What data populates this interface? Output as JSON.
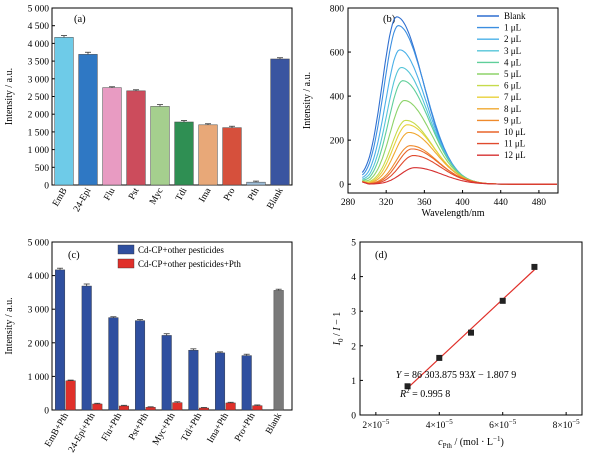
{
  "chart_data": [
    {
      "panel": "(a)",
      "type": "bar",
      "ylabel": "Intensity / a.u.",
      "ylim": [
        0,
        5000
      ],
      "yticks": [
        "0",
        "500",
        "1 000",
        "1 500",
        "2 000",
        "2 500",
        "3 000",
        "3 500",
        "4 000",
        "4 500",
        "5 000"
      ],
      "categories": [
        "EmB",
        "24-Epi",
        "Flu",
        "Pst",
        "Myc",
        "Tdi",
        "Ima",
        "Pro",
        "Pth",
        "Blank"
      ],
      "values": [
        4170,
        3690,
        2750,
        2660,
        2220,
        1780,
        1700,
        1620,
        80,
        3560
      ],
      "errors": [
        50,
        60,
        25,
        30,
        50,
        40,
        30,
        40,
        30,
        35
      ],
      "colors": [
        "#6ecbe8",
        "#2f78c4",
        "#e89bc2",
        "#cc4c5c",
        "#a5cf8e",
        "#2f8f53",
        "#e8a878",
        "#d6503c",
        "#9dbdd8",
        "#3a55a0"
      ]
    },
    {
      "panel": "(b)",
      "type": "line",
      "xlabel": "Wavelength/nm",
      "ylabel": "Intensity / a.u.",
      "xlim": [
        280,
        500
      ],
      "ylim": [
        -40,
        800
      ],
      "xticks": [
        "280",
        "320",
        "360",
        "400",
        "440",
        "480",
        "520"
      ],
      "yticks": [
        "0",
        "200",
        "400",
        "600",
        "800"
      ],
      "legend_position": "top-right",
      "series": [
        {
          "name": "Blank",
          "peak": 760,
          "color": "#2f6fd0"
        },
        {
          "name": "1 μL",
          "peak": 720,
          "color": "#3b8ee0"
        },
        {
          "name": "2 μL",
          "peak": 610,
          "color": "#4ab0e8"
        },
        {
          "name": "3 μL",
          "peak": 530,
          "color": "#55c5d8"
        },
        {
          "name": "4 μL",
          "peak": 470,
          "color": "#5fcf9a"
        },
        {
          "name": "5 μL",
          "peak": 380,
          "color": "#8dd36a"
        },
        {
          "name": "6 μL",
          "peak": 290,
          "color": "#c6db4c"
        },
        {
          "name": "7 μL",
          "peak": 270,
          "color": "#e8d13a"
        },
        {
          "name": "8 μL",
          "peak": 235,
          "color": "#f0a830"
        },
        {
          "name": "9 μL",
          "peak": 175,
          "color": "#ef8a2c"
        },
        {
          "name": "10 μL",
          "peak": 160,
          "color": "#e8652a"
        },
        {
          "name": "11 μL",
          "peak": 130,
          "color": "#e04a2e"
        },
        {
          "name": "12 μL",
          "peak": 75,
          "color": "#d63030"
        }
      ]
    },
    {
      "panel": "(c)",
      "type": "bar",
      "ylabel": "Intensity / a.u.",
      "ylim": [
        0,
        5000
      ],
      "yticks": [
        "0",
        "1 000",
        "2 000",
        "3 000",
        "4 000",
        "5 000"
      ],
      "categories": [
        "EmB+Pth",
        "24-Epi+Pth",
        "Flu+Pth",
        "Pst+Pth",
        "Myc+Pth",
        "Tdi+Pth",
        "Ima+Pth",
        "Pro+Pth",
        "Blank"
      ],
      "series": [
        {
          "name": "Cd-CP+other pesticides",
          "color": "#2f4f9f",
          "values": [
            4170,
            3690,
            2750,
            2660,
            2220,
            1780,
            1700,
            1620,
            3560
          ],
          "errors": [
            50,
            60,
            25,
            30,
            50,
            40,
            30,
            40,
            35
          ]
        },
        {
          "name": "Cd-CP+other pesticides+Pth",
          "color": "#e0302a",
          "values": [
            870,
            180,
            120,
            80,
            220,
            60,
            210,
            130,
            null
          ],
          "errors": [
            20,
            20,
            20,
            15,
            25,
            15,
            20,
            20,
            null
          ]
        }
      ],
      "blank_color": "#7a7a7a",
      "legend_position": "top"
    },
    {
      "panel": "(d)",
      "type": "scatter",
      "xlabel_parts": {
        "sym": "c",
        "sub": "Pth",
        "unit": " / (mol · L",
        "exp": "−1",
        "close": ")"
      },
      "ylabel_parts": {
        "i0": "I",
        "i0_sub": "0",
        "mid": " / ",
        "i": "I",
        "tail": " − 1"
      },
      "xlim": [
        1.5e-05,
        8.5e-05
      ],
      "ylim": [
        0,
        5
      ],
      "xticks": [
        {
          "mant": "2×10",
          "exp": "−5",
          "v": 2e-05
        },
        {
          "mant": "4×10",
          "exp": "−5",
          "v": 4e-05
        },
        {
          "mant": "6×10",
          "exp": "−5",
          "v": 6e-05
        },
        {
          "mant": "8×10",
          "exp": "−5",
          "v": 8e-05
        }
      ],
      "yticks": [
        "0",
        "1",
        "2",
        "3",
        "4",
        "5"
      ],
      "x": [
        3e-05,
        4e-05,
        5e-05,
        6e-05,
        7e-05
      ],
      "y": [
        0.83,
        1.65,
        2.38,
        3.3,
        4.28
      ],
      "fit_color": "#e0302a",
      "equation": {
        "y": "Y",
        "eq": " = 86 303.875 93",
        "x": "X",
        "rest": " − 1.807 9"
      },
      "r2": {
        "r": "R",
        "exp": "2",
        "rest": " = 0.995 8"
      }
    }
  ]
}
